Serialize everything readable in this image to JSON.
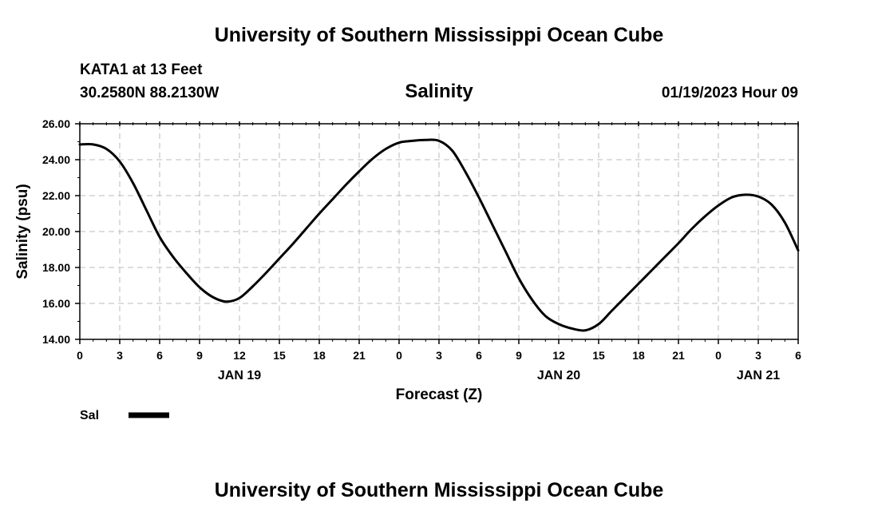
{
  "header": {
    "title": "University of Southern Mississippi Ocean Cube",
    "station": "KATA1 at 13 Feet",
    "coords": "30.2580N  88.2130W",
    "timestamp": "01/19/2023 Hour 09"
  },
  "footer": {
    "title": "University of Southern Mississippi Ocean Cube"
  },
  "colors": {
    "line": "#000000",
    "grid": "#bbbbbb"
  },
  "chart_data": {
    "type": "line",
    "title": "Salinity",
    "xlabel": "Forecast (Z)",
    "ylabel": "Salinity (psu)",
    "xlim": [
      0,
      54
    ],
    "ylim": [
      14,
      26
    ],
    "y_ticks": [
      "14.00",
      "16.00",
      "18.00",
      "20.00",
      "22.00",
      "24.00",
      "26.00"
    ],
    "x_tick_labels": [
      "0",
      "3",
      "6",
      "9",
      "12",
      "15",
      "18",
      "21",
      "0",
      "3",
      "6",
      "9",
      "12",
      "15",
      "18",
      "21",
      "0",
      "3",
      "6"
    ],
    "day_labels": [
      {
        "label": "JAN 19",
        "hour": 12
      },
      {
        "label": "JAN 20",
        "hour": 36
      },
      {
        "label": "JAN 21",
        "hour": 51
      }
    ],
    "grid": true,
    "legend": "bottom-left",
    "series": [
      {
        "name": "Sal",
        "x": [
          0,
          1,
          2,
          3,
          4,
          5,
          6,
          7,
          8,
          9,
          10,
          11,
          12,
          13,
          14,
          15,
          16,
          17,
          18,
          19,
          20,
          21,
          22,
          23,
          24,
          25,
          26,
          27,
          28,
          29,
          30,
          31,
          32,
          33,
          34,
          35,
          36,
          37,
          38,
          39,
          40,
          41,
          42,
          43,
          44,
          45,
          46,
          47,
          48,
          49,
          50,
          51,
          52,
          53,
          54
        ],
        "values": [
          24.85,
          24.85,
          24.6,
          23.9,
          22.7,
          21.2,
          19.7,
          18.6,
          17.7,
          16.9,
          16.35,
          16.1,
          16.3,
          16.95,
          17.7,
          18.5,
          19.3,
          20.15,
          21.0,
          21.8,
          22.6,
          23.35,
          24.05,
          24.6,
          24.95,
          25.05,
          25.1,
          25.05,
          24.5,
          23.3,
          21.9,
          20.4,
          18.9,
          17.4,
          16.2,
          15.3,
          14.85,
          14.6,
          14.5,
          14.85,
          15.6,
          16.35,
          17.1,
          17.85,
          18.6,
          19.35,
          20.15,
          20.85,
          21.45,
          21.9,
          22.05,
          21.95,
          21.5,
          20.5,
          18.95
        ]
      }
    ]
  }
}
